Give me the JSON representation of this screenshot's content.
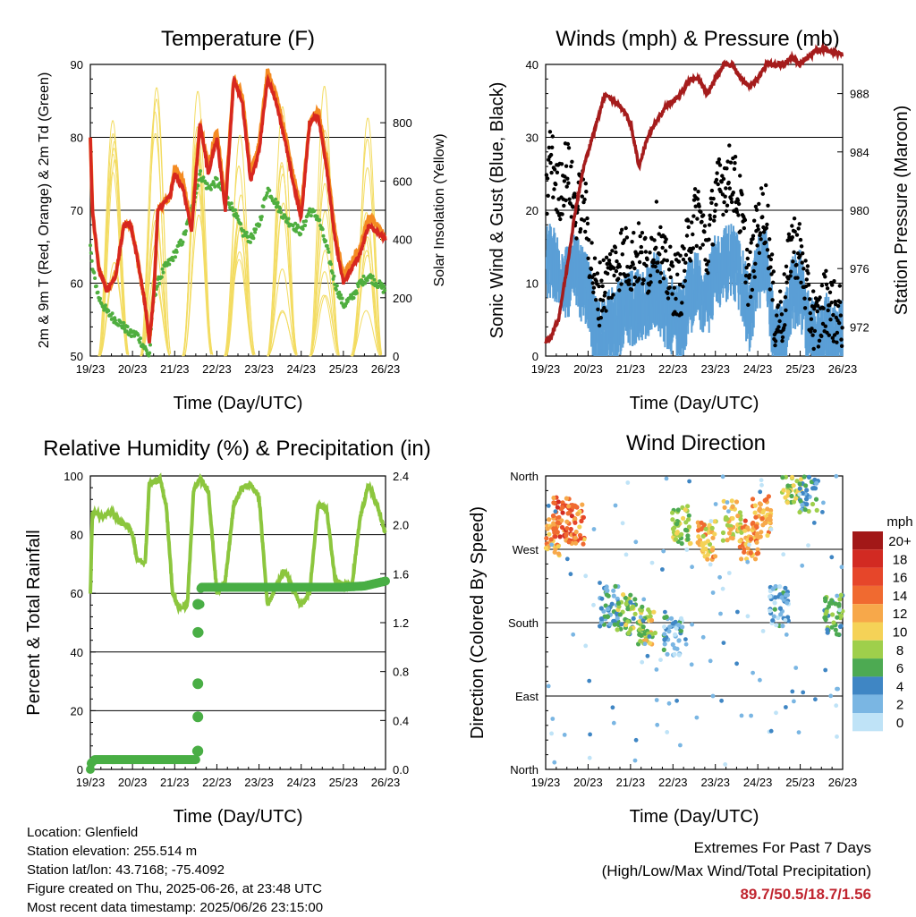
{
  "colors": {
    "temp_red": "#d7271f",
    "temp_orange": "#f48b22",
    "dew_green": "#4fae3f",
    "solar_yellow": "#f3dc62",
    "wind_blue": "#5a9fd6",
    "gust_black": "#000000",
    "pressure_maroon": "#a51c1c",
    "rh_green": "#8cc63e",
    "precip_green": "#49ae45",
    "extremes_red": "#c0252f"
  },
  "x_ticks": [
    "19/23",
    "20/23",
    "21/23",
    "22/23",
    "23/23",
    "24/23",
    "25/23",
    "26/23"
  ],
  "panels": {
    "temperature": {
      "title": "Temperature (F)",
      "xlabel": "Time (Day/UTC)",
      "ylabel_left": "2m & 9m T (Red, Orange) & 2m Td (Green)",
      "ylabel_right": "Solar Insolation (Yellow)",
      "left_ticks": [
        "50",
        "60",
        "70",
        "80",
        "90"
      ],
      "right_ticks": [
        "0",
        "200",
        "400",
        "600",
        "800"
      ]
    },
    "winds": {
      "title": "Winds (mph) & Pressure (mb)",
      "xlabel": "Time (Day/UTC)",
      "ylabel_left": "Sonic Wind & Gust (Blue, Black)",
      "ylabel_right": "Station Pressure (Maroon)",
      "left_ticks": [
        "0",
        "10",
        "20",
        "30",
        "40"
      ],
      "right_ticks": [
        "972",
        "976",
        "980",
        "984",
        "988"
      ]
    },
    "humidity": {
      "title": "Relative Humidity (%) & Precipitation (in)",
      "xlabel": "Time (Day/UTC)",
      "ylabel_left": "Percent & Total Rainfall",
      "left_ticks": [
        "0",
        "20",
        "40",
        "60",
        "80",
        "100"
      ],
      "right_ticks": [
        "0.0",
        "0.4",
        "0.8",
        "1.2",
        "1.6",
        "2.0",
        "2.4"
      ]
    },
    "direction": {
      "title": "Wind Direction",
      "xlabel": "Time (Day/UTC)",
      "ylabel_left": "Direction (Colored By Speed)",
      "left_ticks": [
        "North",
        "East",
        "South",
        "West",
        "North"
      ],
      "legend_title": "mph",
      "legend_labels": [
        "20+",
        "18",
        "16",
        "14",
        "12",
        "10",
        "8",
        "6",
        "4",
        "2",
        "0"
      ],
      "legend_colors": [
        "#a21818",
        "#d22a22",
        "#e6462a",
        "#f06a30",
        "#f7a84a",
        "#f5d257",
        "#9fcf4b",
        "#4daa52",
        "#3f86c4",
        "#7ab6e3",
        "#bfe3f7"
      ]
    }
  },
  "chart_data": [
    {
      "type": "line",
      "title": "Temperature (F)",
      "xlabel": "Time (Day/UTC)",
      "ylabel": "2m & 9m T (Red, Orange) & 2m Td (Green)",
      "y2label": "Solar Insolation (Yellow)",
      "x": [
        0,
        0.05,
        0.2,
        0.4,
        0.6,
        0.8,
        0.95,
        1.1,
        1.3,
        1.4,
        1.5,
        1.6,
        1.75,
        1.9,
        2.0,
        2.2,
        2.4,
        2.6,
        2.8,
        3.0,
        3.2,
        3.4,
        3.6,
        3.8,
        4.0,
        4.2,
        4.4,
        4.6,
        4.8,
        5.0,
        5.2,
        5.4,
        5.6,
        5.8,
        6.0,
        6.2,
        6.4,
        6.6,
        6.8,
        7.0
      ],
      "ylim": [
        50,
        90
      ],
      "y2lim": [
        0,
        1000
      ],
      "series": [
        {
          "name": "2m T",
          "values": [
            80,
            70,
            62,
            59,
            61,
            68,
            68,
            64,
            57,
            52,
            58,
            70,
            71,
            72,
            75,
            73,
            67,
            82,
            75,
            80,
            70,
            88,
            85,
            74,
            78,
            88,
            85,
            80,
            74,
            69,
            82,
            83,
            76,
            66,
            60,
            62,
            64,
            68,
            67,
            66
          ]
        },
        {
          "name": "9m T",
          "values": [
            80,
            70,
            62,
            59,
            61,
            68,
            68,
            64,
            57,
            52,
            58,
            70,
            71,
            72,
            76,
            74,
            68,
            82,
            76,
            81,
            71,
            88,
            86,
            75,
            79,
            89,
            86,
            81,
            75,
            70,
            82,
            84,
            77,
            67,
            61,
            63,
            65,
            69,
            68,
            66
          ]
        },
        {
          "name": "2m Td",
          "values": [
            65,
            62,
            58,
            56,
            55,
            54,
            53,
            53,
            51,
            50,
            58,
            60,
            62,
            63,
            64,
            66,
            70,
            75,
            73,
            74,
            72,
            70,
            67,
            66,
            68,
            73,
            71,
            69,
            68,
            67,
            70,
            69,
            65,
            60,
            57,
            58,
            60,
            61,
            60,
            59
          ]
        },
        {
          "name": "Solar Insolation",
          "peaks_day": [
            0.55,
            1.55,
            2.55,
            3.55,
            4.55,
            5.55,
            6.55
          ],
          "peak_values": [
            980,
            990,
            930,
            910,
            930,
            930,
            990
          ]
        }
      ]
    },
    {
      "type": "line",
      "title": "Winds (mph) & Pressure (mb)",
      "xlabel": "Time (Day/UTC)",
      "ylabel": "Sonic Wind & Gust (Blue, Black)",
      "y2label": "Station Pressure (Maroon)",
      "x": [
        0,
        0.1,
        0.3,
        0.5,
        0.7,
        0.9,
        1.0,
        1.2,
        1.4,
        1.6,
        1.8,
        2.0,
        2.2,
        2.4,
        2.6,
        2.8,
        3.0,
        3.2,
        3.4,
        3.6,
        3.8,
        4.0,
        4.2,
        4.4,
        4.6,
        4.8,
        5.0,
        5.2,
        5.4,
        5.6,
        5.8,
        6.0,
        6.2,
        6.4,
        6.6,
        6.8,
        7.0
      ],
      "ylim": [
        0,
        40
      ],
      "y2lim": [
        970,
        990
      ],
      "series": [
        {
          "name": "Sonic Wind",
          "values": [
            13,
            14,
            12,
            11,
            12,
            10,
            9,
            3,
            4,
            5,
            6,
            7,
            8,
            8,
            10,
            7,
            6,
            5,
            9,
            10,
            8,
            12,
            13,
            14,
            11,
            6,
            12,
            13,
            2,
            3,
            9,
            10,
            4,
            2,
            4,
            3,
            3
          ]
        },
        {
          "name": "Gust",
          "values": [
            20,
            28,
            22,
            26,
            20,
            22,
            16,
            8,
            10,
            12,
            14,
            13,
            14,
            12,
            17,
            12,
            10,
            10,
            17,
            20,
            14,
            22,
            24,
            25,
            20,
            10,
            18,
            20,
            5,
            6,
            16,
            14,
            7,
            4,
            8,
            6,
            5
          ]
        },
        {
          "name": "Station Pressure",
          "values": [
            971.0,
            971.2,
            972.5,
            976,
            980,
            983,
            984,
            986,
            988,
            987.5,
            987,
            986,
            983,
            985,
            986,
            987,
            987.5,
            988,
            989,
            989,
            988,
            989,
            990,
            990,
            989,
            988.5,
            989,
            990,
            990,
            990,
            990.5,
            990,
            990.5,
            991,
            991,
            990.8,
            990.7
          ]
        }
      ]
    },
    {
      "type": "line",
      "title": "Relative Humidity (%) & Precipitation (in)",
      "xlabel": "Time (Day/UTC)",
      "ylabel": "Percent & Total Rainfall",
      "x": [
        0,
        0.05,
        0.3,
        0.5,
        0.7,
        0.9,
        1.0,
        1.1,
        1.3,
        1.4,
        1.55,
        1.65,
        1.8,
        1.95,
        2.1,
        2.3,
        2.45,
        2.6,
        2.8,
        3.0,
        3.2,
        3.4,
        3.6,
        3.8,
        4.0,
        4.2,
        4.4,
        4.6,
        4.8,
        5.0,
        5.2,
        5.4,
        5.6,
        5.8,
        6.0,
        6.2,
        6.4,
        6.6,
        6.8,
        7.0
      ],
      "ylim": [
        0,
        100
      ],
      "y2lim": [
        0,
        2.4
      ],
      "series": [
        {
          "name": "Relative Humidity",
          "values": [
            60,
            88,
            86,
            88,
            84,
            83,
            80,
            72,
            70,
            98,
            98,
            99,
            90,
            60,
            55,
            56,
            95,
            99,
            95,
            60,
            64,
            90,
            96,
            97,
            93,
            56,
            62,
            68,
            62,
            56,
            60,
            90,
            89,
            65,
            63,
            62,
            86,
            97,
            90,
            80
          ]
        },
        {
          "name": "Total Rainfall",
          "x": [
            0,
            0.02,
            0.1,
            0.5,
            1.0,
            2.0,
            2.5,
            2.52,
            2.54,
            2.56,
            2.58,
            2.6,
            2.62,
            2.64,
            3.0,
            4.0,
            5.0,
            6.0,
            6.5,
            7.0
          ],
          "values": [
            0.0,
            0.05,
            0.08,
            0.08,
            0.08,
            0.08,
            0.08,
            0.15,
            0.43,
            0.7,
            1.12,
            1.35,
            1.48,
            1.49,
            1.49,
            1.49,
            1.49,
            1.49,
            1.5,
            1.54
          ]
        }
      ]
    },
    {
      "type": "scatter",
      "title": "Wind Direction",
      "xlabel": "Time (Day/UTC)",
      "ylabel": "Direction (Colored By Speed)",
      "y_categories": [
        "North",
        "East",
        "South",
        "West",
        "North"
      ],
      "ylim": [
        0,
        360
      ],
      "colorbar": {
        "label": "mph",
        "values": [
          "0",
          "2",
          "4",
          "6",
          "8",
          "10",
          "12",
          "14",
          "16",
          "18",
          "20+"
        ]
      },
      "clusters": [
        {
          "x": 0.1,
          "dir": 285,
          "speed": 12
        },
        {
          "x": 0.4,
          "dir": 310,
          "speed": 15
        },
        {
          "x": 0.7,
          "dir": 300,
          "speed": 13
        },
        {
          "x": 1.5,
          "dir": 200,
          "speed": 4
        },
        {
          "x": 1.9,
          "dir": 190,
          "speed": 7
        },
        {
          "x": 2.4,
          "dir": 175,
          "speed": 9
        },
        {
          "x": 3.0,
          "dir": 165,
          "speed": 3
        },
        {
          "x": 3.2,
          "dir": 300,
          "speed": 8
        },
        {
          "x": 3.8,
          "dir": 280,
          "speed": 11
        },
        {
          "x": 4.4,
          "dir": 305,
          "speed": 10
        },
        {
          "x": 4.8,
          "dir": 280,
          "speed": 13
        },
        {
          "x": 5.1,
          "dir": 310,
          "speed": 12
        },
        {
          "x": 5.5,
          "dir": 200,
          "speed": 3
        },
        {
          "x": 5.8,
          "dir": 350,
          "speed": 8
        },
        {
          "x": 6.2,
          "dir": 340,
          "speed": 5
        },
        {
          "x": 6.8,
          "dir": 190,
          "speed": 6
        }
      ]
    }
  ],
  "footer": {
    "location": "Location: Glenfield",
    "elevation": "Station elevation: 255.514 m",
    "latlon": "Station lat/lon: 43.7168; -75.4092",
    "created": "Figure created on Thu, 2025-06-26, at 23:48 UTC",
    "recent": "Most recent data timestamp: 2025/06/26 23:15:00",
    "extremes_title": "Extremes For Past 7 Days",
    "extremes_sub": "(High/Low/Max Wind/Total Precipitation)",
    "extremes_value": "89.7/50.5/18.7/1.56"
  }
}
